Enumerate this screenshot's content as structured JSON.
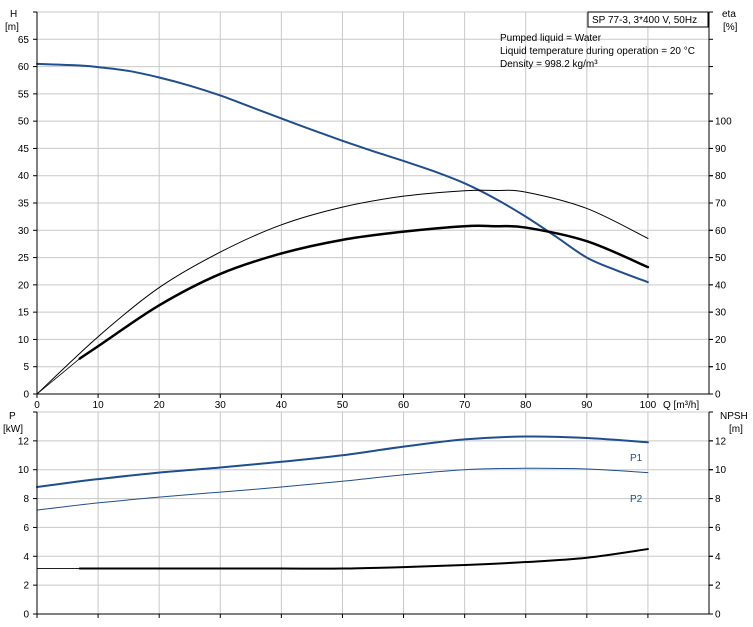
{
  "chart_data": [
    {
      "type": "line",
      "title_box": "SP 77-3, 3*400 V, 50Hz",
      "info_lines": [
        "Pumped liquid = Water",
        "Liquid temperature during operation = 20 °C",
        "Density = 998.2 kg/m³"
      ],
      "left_axis": {
        "label_top": "H",
        "label_unit": "[m]",
        "ticks": [
          0,
          5,
          10,
          15,
          20,
          25,
          30,
          35,
          40,
          45,
          50,
          55,
          60,
          65
        ],
        "range": [
          0,
          70
        ]
      },
      "right_axis": {
        "label_top": "eta",
        "label_unit": "[%]",
        "ticks": [
          0,
          10,
          20,
          30,
          40,
          50,
          60,
          70,
          80,
          90,
          100
        ],
        "range": [
          0,
          140
        ]
      },
      "x_axis": {
        "label": "Q [m³/h]",
        "ticks": [
          0,
          10,
          20,
          30,
          40,
          50,
          60,
          70,
          80,
          90,
          100
        ],
        "range": [
          0,
          110
        ]
      },
      "grid": true,
      "series": [
        {
          "axis": "left",
          "color": "#1f4e8c",
          "width": 2,
          "x": [
            0,
            7,
            10,
            15,
            20,
            25,
            30,
            35,
            40,
            45,
            50,
            55,
            60,
            65,
            70,
            75,
            80,
            85,
            90,
            95,
            100
          ],
          "values": [
            60.5,
            60.2,
            59.9,
            59.2,
            58.0,
            56.5,
            54.7,
            52.6,
            50.5,
            48.4,
            46.4,
            44.5,
            42.7,
            40.8,
            38.6,
            35.8,
            32.5,
            28.8,
            25.0,
            22.6,
            20.5
          ]
        },
        {
          "axis": "right",
          "color": "#000000",
          "width": 1,
          "x": [
            0,
            10,
            20,
            30,
            40,
            50,
            60,
            70,
            75,
            80,
            90,
            100
          ],
          "values": [
            0,
            21,
            39,
            52,
            62,
            68.5,
            72.5,
            74.5,
            74.6,
            74,
            68,
            57
          ]
        },
        {
          "axis": "right",
          "color": "#000000",
          "width": 2.5,
          "x": [
            7,
            10,
            20,
            30,
            40,
            50,
            60,
            70,
            75,
            80,
            90,
            100
          ],
          "values": [
            13,
            17.5,
            32.5,
            44,
            51.5,
            56.5,
            59.5,
            61.5,
            61.5,
            61,
            56,
            46.5
          ]
        },
        {
          "axis": "right",
          "color": "#000000",
          "width": 0.8,
          "x": [
            0,
            7
          ],
          "values": [
            0,
            13
          ]
        }
      ]
    },
    {
      "type": "line",
      "left_axis": {
        "label_top": "P",
        "label_unit": "[kW]",
        "ticks": [
          0,
          2,
          4,
          6,
          8,
          10,
          12
        ],
        "range": [
          0,
          14
        ]
      },
      "right_axis": {
        "label_top": "NPSH",
        "label_unit": "[m]",
        "ticks": [
          0,
          2,
          4,
          6,
          8,
          10,
          12
        ],
        "range": [
          0,
          14
        ]
      },
      "x_axis": {
        "range": [
          0,
          110
        ]
      },
      "grid": true,
      "series": [
        {
          "name": "P1",
          "axis": "left",
          "color": "#1f4e8c",
          "width": 2,
          "x": [
            0,
            7,
            10,
            20,
            30,
            40,
            50,
            60,
            70,
            80,
            90,
            100
          ],
          "values": [
            8.8,
            9.2,
            9.35,
            9.8,
            10.15,
            10.55,
            11.0,
            11.6,
            12.1,
            12.3,
            12.2,
            11.9
          ]
        },
        {
          "name": "P2",
          "axis": "left",
          "color": "#1f4e8c",
          "width": 1,
          "x": [
            0,
            10,
            20,
            30,
            40,
            50,
            60,
            70,
            80,
            90,
            100
          ],
          "values": [
            7.2,
            7.7,
            8.1,
            8.45,
            8.8,
            9.2,
            9.65,
            10.0,
            10.1,
            10.05,
            9.8
          ]
        },
        {
          "axis": "right",
          "color": "#000000",
          "width": 2,
          "x": [
            7,
            20,
            30,
            40,
            50,
            60,
            70,
            80,
            90,
            100
          ],
          "values": [
            3.15,
            3.15,
            3.15,
            3.15,
            3.15,
            3.25,
            3.4,
            3.6,
            3.9,
            4.5
          ]
        },
        {
          "axis": "right",
          "color": "#000000",
          "width": 0.8,
          "x": [
            0,
            7
          ],
          "values": [
            3.15,
            3.15
          ]
        }
      ]
    }
  ]
}
